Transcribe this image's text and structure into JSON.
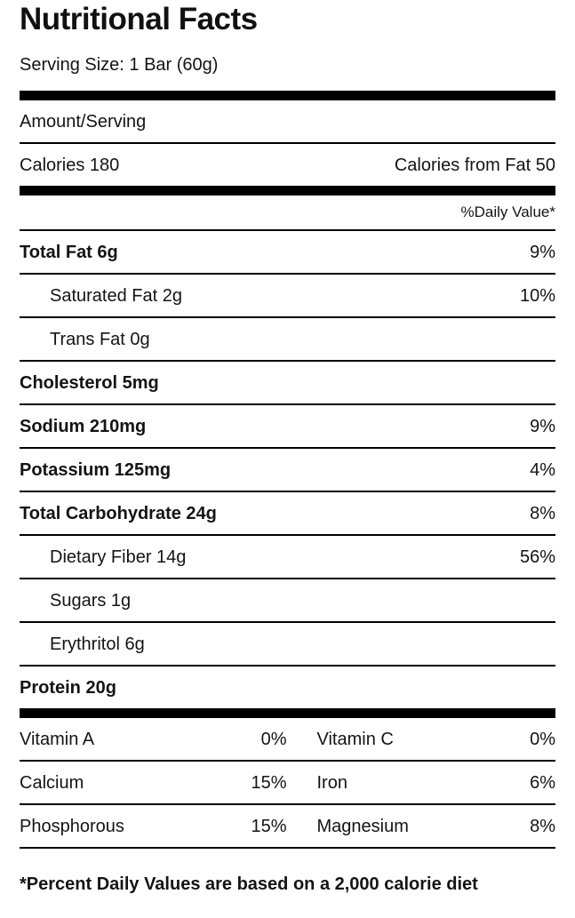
{
  "label": {
    "title": "Nutritional Facts",
    "serving_size": "Serving Size: 1 Bar (60g)",
    "amount_per_serving_header": "Amount/Serving",
    "calories": "Calories 180",
    "calories_from_fat": "Calories from Fat 50",
    "daily_value_header": "%Daily Value*",
    "nutrients": [
      {
        "name": "Total Fat 6g",
        "dv": "9%",
        "bold": true,
        "indent": false
      },
      {
        "name": "Saturated Fat 2g",
        "dv": "10%",
        "bold": false,
        "indent": true
      },
      {
        "name": "Trans Fat 0g",
        "dv": "",
        "bold": false,
        "indent": true
      },
      {
        "name": "Cholesterol 5mg",
        "dv": "",
        "bold": true,
        "indent": false
      },
      {
        "name": "Sodium 210mg",
        "dv": "9%",
        "bold": true,
        "indent": false
      },
      {
        "name": "Potassium 125mg",
        "dv": "4%",
        "bold": true,
        "indent": false
      },
      {
        "name": "Total Carbohydrate 24g",
        "dv": "8%",
        "bold": true,
        "indent": false
      },
      {
        "name": "Dietary Fiber 14g",
        "dv": "56%",
        "bold": false,
        "indent": true
      },
      {
        "name": "Sugars 1g",
        "dv": "",
        "bold": false,
        "indent": true
      },
      {
        "name": "Erythritol 6g",
        "dv": "",
        "bold": false,
        "indent": true
      },
      {
        "name": "Protein 20g",
        "dv": "",
        "bold": true,
        "indent": false
      }
    ],
    "micronutrients": [
      {
        "name1": "Vitamin A",
        "dv1": "0%",
        "name2": "Vitamin C",
        "dv2": "0%"
      },
      {
        "name1": "Calcium",
        "dv1": "15%",
        "name2": "Iron",
        "dv2": "6%"
      },
      {
        "name1": "Phosphorous",
        "dv1": "15%",
        "name2": "Magnesium",
        "dv2": "8%"
      }
    ],
    "footnote": "*Percent Daily Values are based on a 2,000 calorie diet",
    "colors": {
      "text": "#141414",
      "rule": "#000000",
      "background": "#ffffff"
    }
  }
}
